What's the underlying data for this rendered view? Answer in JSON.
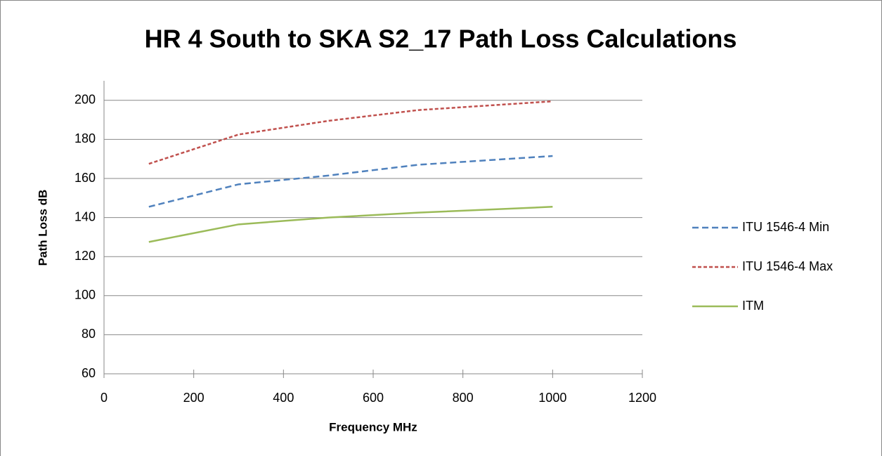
{
  "chart_data": {
    "type": "line",
    "title": "HR 4 South to SKA S2_17 Path Loss Calculations",
    "x_label": "Frequency MHz",
    "y_label": "Path Loss dB",
    "x": [
      100,
      300,
      500,
      700,
      1000
    ],
    "series": [
      {
        "name": "ITU 1546-4 Min",
        "color": "#4f81bd",
        "dash": "dashed",
        "values": [
          145.5,
          157,
          161.5,
          167,
          171.5
        ]
      },
      {
        "name": "ITU 1546-4 Max",
        "color": "#c0504d",
        "dash": "dotted",
        "values": [
          167.5,
          182.5,
          189.5,
          195,
          199.5
        ]
      },
      {
        "name": "ITM",
        "color": "#9bbb59",
        "dash": "solid",
        "values": [
          127.5,
          136.5,
          140,
          142.5,
          145.5
        ]
      }
    ],
    "xlim": [
      0,
      1200
    ],
    "xticks": [
      0,
      200,
      400,
      600,
      800,
      1000,
      1200
    ],
    "ylim": [
      60,
      210
    ],
    "yticks": [
      60,
      80,
      100,
      120,
      140,
      160,
      180,
      200
    ],
    "grid": true,
    "legend": "right"
  }
}
